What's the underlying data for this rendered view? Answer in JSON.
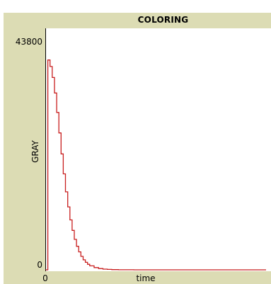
{
  "plot": {
    "title": "COLORING"
  },
  "chart_data": {
    "type": "line",
    "title": "COLORING",
    "xlabel": "time",
    "ylabel": "GRAY",
    "xlim": [
      0,
      100
    ],
    "ylim": [
      0,
      43800
    ],
    "x_tick_labels": [
      "0"
    ],
    "y_tick_labels": [
      "43800",
      "0"
    ],
    "grid": false,
    "series": [
      {
        "color": "#c81e1e",
        "x": [
          0,
          1,
          2,
          3,
          4,
          5,
          6,
          7,
          8,
          9,
          10,
          11,
          12,
          13,
          14,
          15,
          16,
          17,
          18,
          19,
          20,
          22,
          24,
          26,
          28,
          30,
          33,
          36,
          40,
          45,
          50,
          60,
          70,
          80,
          90,
          100
        ],
        "y": [
          0,
          42000,
          40700,
          38500,
          35400,
          31500,
          27400,
          23200,
          19200,
          15600,
          12600,
          10000,
          7900,
          6100,
          4700,
          3600,
          2700,
          2000,
          1500,
          1100,
          800,
          450,
          250,
          140,
          80,
          45,
          20,
          10,
          5,
          2,
          1,
          0,
          0,
          0,
          0,
          0
        ]
      }
    ]
  }
}
